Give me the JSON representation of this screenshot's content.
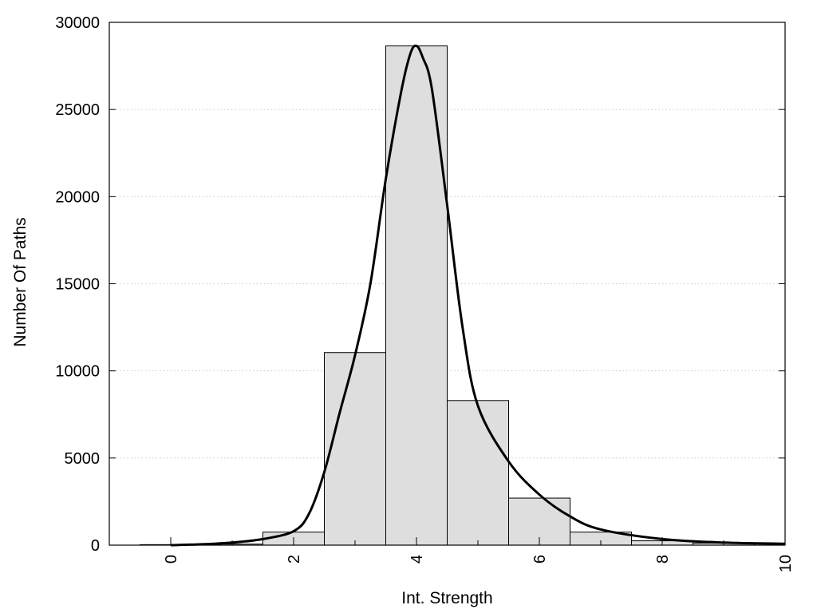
{
  "chart_data": {
    "type": "bar",
    "title": "",
    "xlabel": "Int. Strength",
    "ylabel": "Number Of Paths",
    "xlim": [
      -1,
      10
    ],
    "ylim": [
      0,
      30000
    ],
    "xticks": [
      0,
      2,
      4,
      6,
      8,
      10
    ],
    "xtick_labels": [
      "0",
      "2",
      "4",
      "6",
      "8",
      "10"
    ],
    "xtick_rotation": "vertical",
    "yticks": [
      0,
      5000,
      10000,
      15000,
      20000,
      25000,
      30000
    ],
    "ytick_labels": [
      "0",
      "5000",
      "10000",
      "15000",
      "20000",
      "25000",
      "30000"
    ],
    "grid": "horizontal dotted",
    "legend": "none",
    "bar_color": "#dedede",
    "bar_edge_color": "#000000",
    "bars": {
      "categories": [
        0,
        1,
        2,
        3,
        4,
        5,
        6,
        7,
        8,
        9
      ],
      "values": [
        30,
        60,
        750,
        11050,
        28650,
        8300,
        2700,
        750,
        250,
        120
      ]
    },
    "curve": {
      "x": [
        0,
        0.5,
        1.0,
        1.5,
        2.0,
        2.25,
        2.5,
        2.75,
        3.0,
        3.25,
        3.5,
        3.75,
        3.9,
        4.0,
        4.1,
        4.25,
        4.5,
        4.75,
        5.0,
        5.5,
        6.0,
        6.5,
        7.0,
        8.0,
        9.0,
        10.0
      ],
      "y": [
        0,
        50,
        150,
        350,
        800,
        1800,
        4200,
        7600,
        10900,
        15000,
        21000,
        26000,
        28200,
        28650,
        28000,
        26200,
        19500,
        12500,
        8000,
        4800,
        2900,
        1650,
        900,
        350,
        150,
        80
      ]
    }
  }
}
